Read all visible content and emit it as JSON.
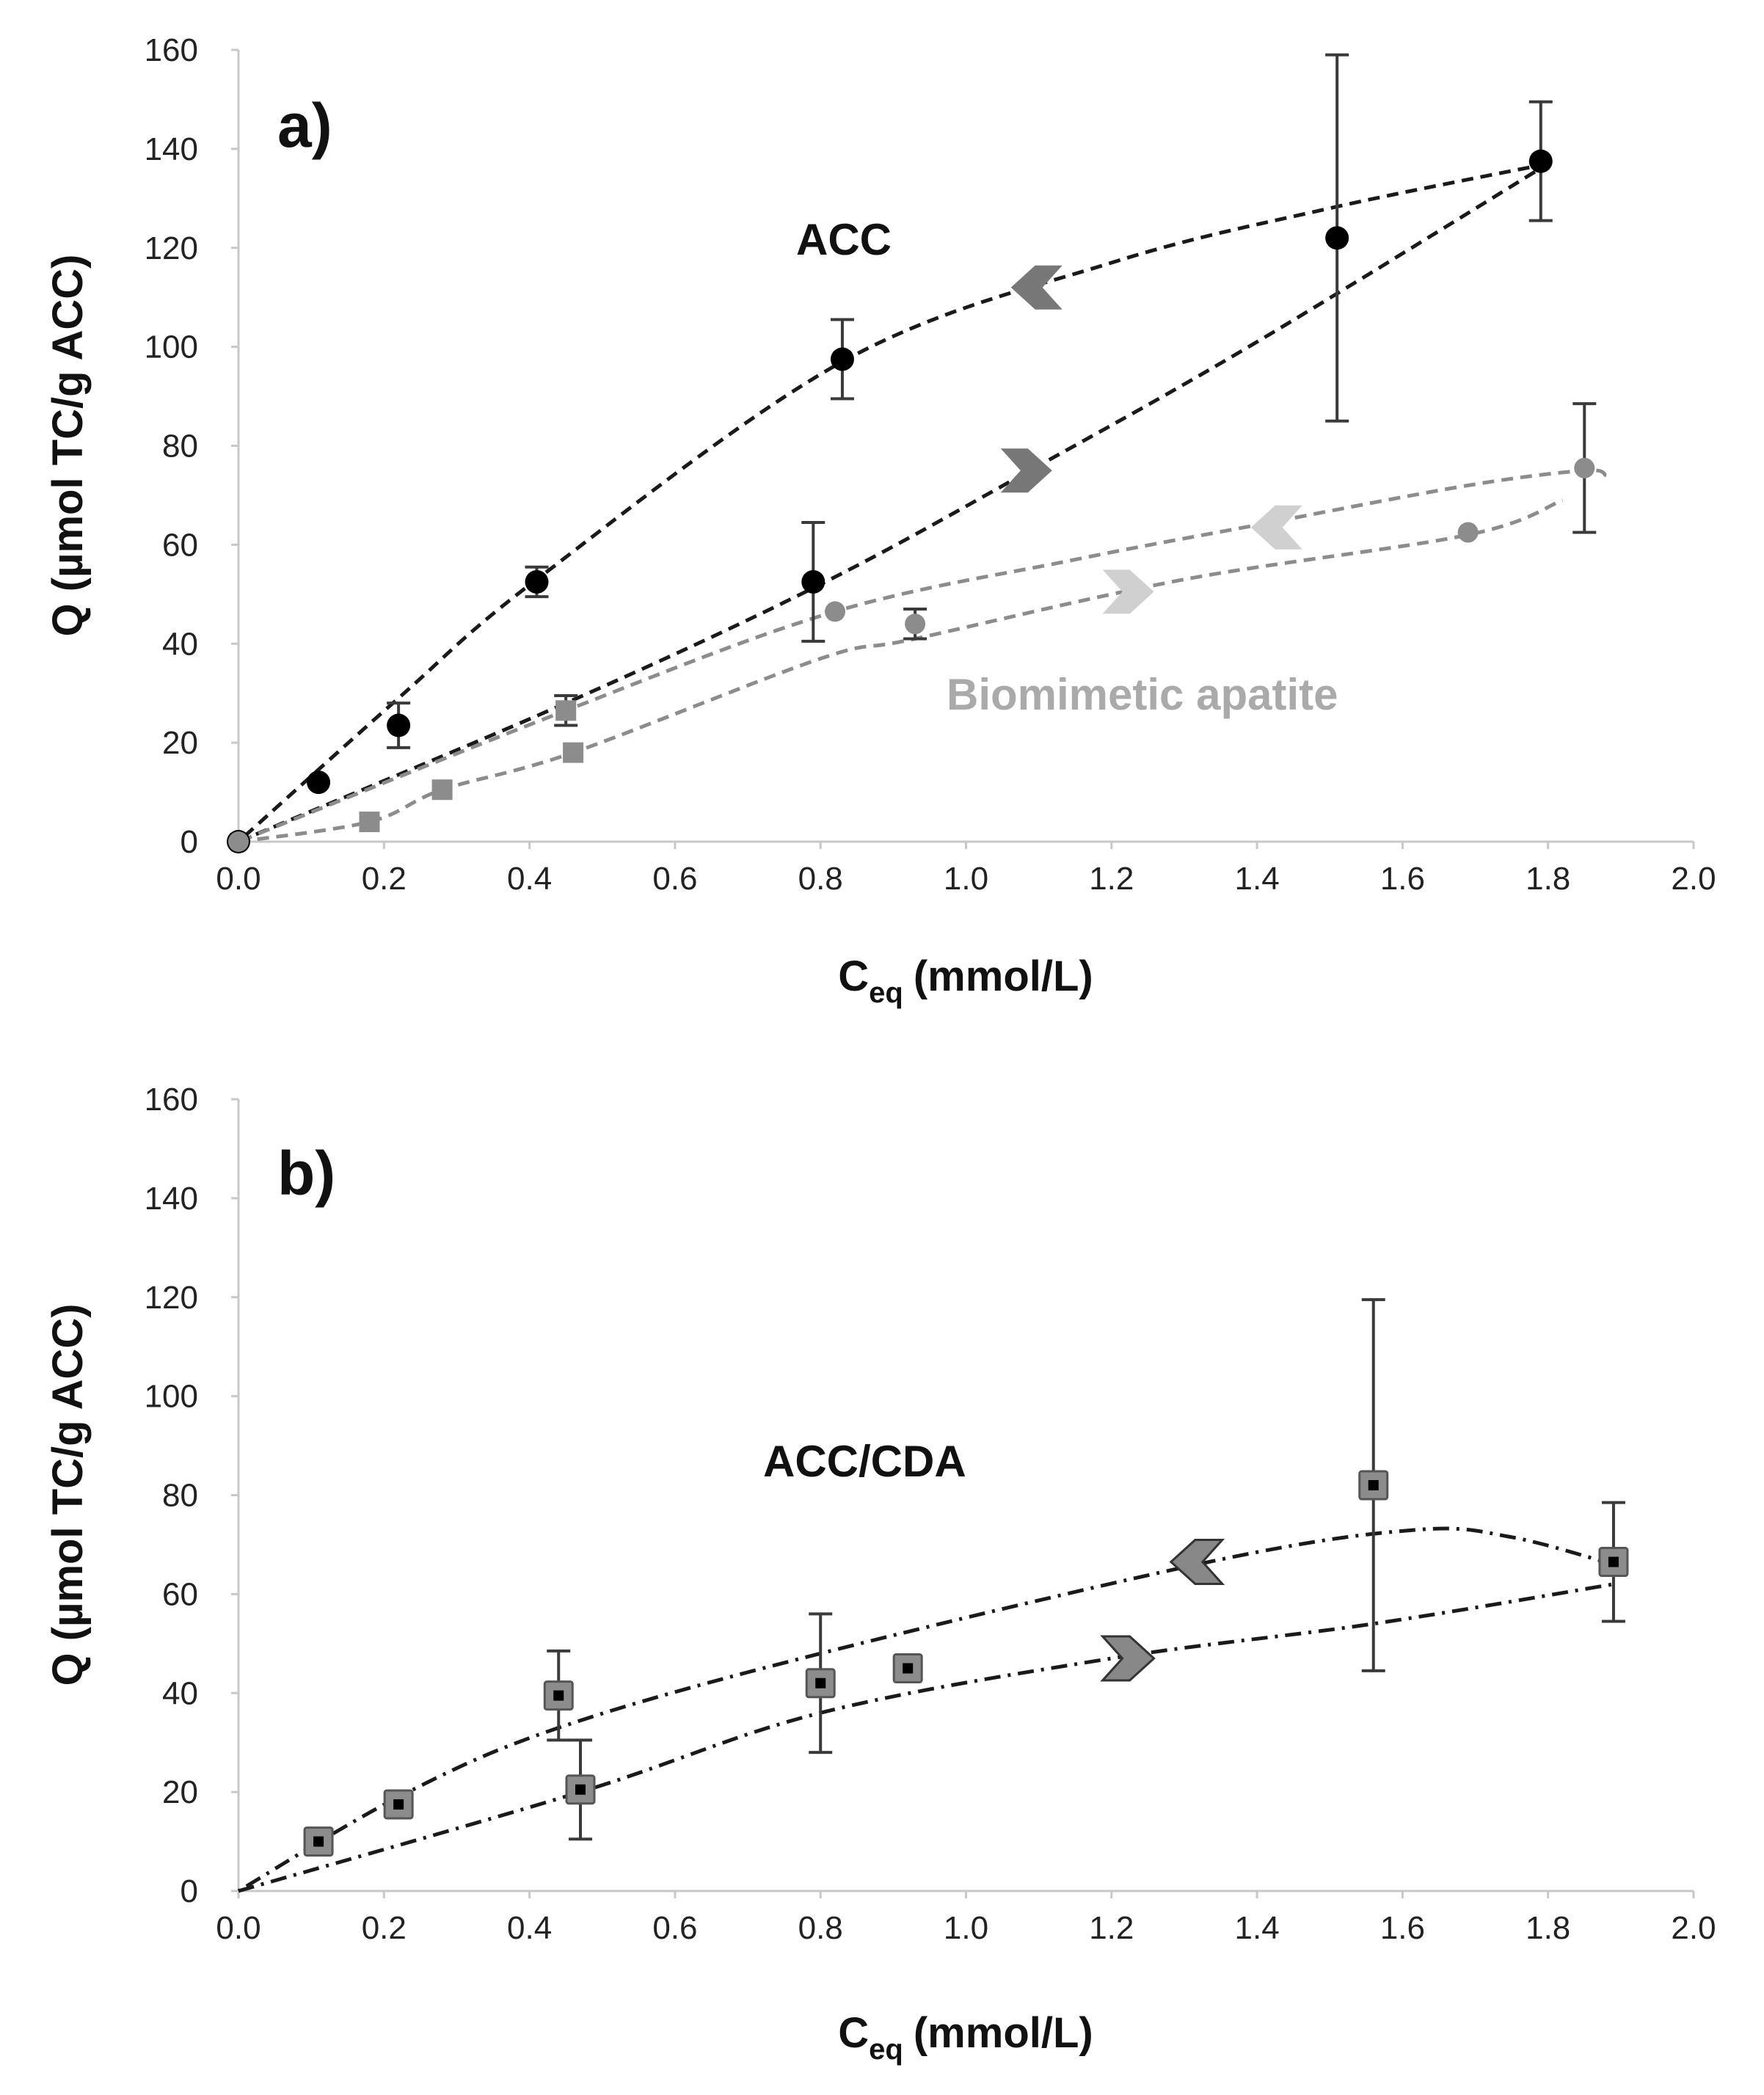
{
  "chart_data": [
    {
      "type": "scatter",
      "panel_label": "a)",
      "xlabel": "C",
      "xlabel_subscript": "eq",
      "xlabel_unit": "(mmol/L)",
      "ylabel": "Q (µmol TC/g ACC)",
      "xlim": [
        0,
        2.0
      ],
      "ylim": [
        0,
        160
      ],
      "xticks": [
        "0.0",
        "0.2",
        "0.4",
        "0.6",
        "0.8",
        "1.0",
        "1.2",
        "1.4",
        "1.6",
        "1.8",
        "2.0"
      ],
      "yticks": [
        "0",
        "20",
        "40",
        "60",
        "80",
        "100",
        "120",
        "140",
        "160"
      ],
      "series": [
        {
          "name": "ACC",
          "label": "ACC",
          "label_color": "#111111",
          "marker": "circle",
          "marker_color": "#000000",
          "line_style": "dashed",
          "line_color": "#1a1a1a",
          "points": [
            {
              "x": 0.0,
              "y": 0,
              "err": 0
            },
            {
              "x": 0.11,
              "y": 12,
              "err": 0
            },
            {
              "x": 0.22,
              "y": 23.5,
              "err": 4.5
            },
            {
              "x": 0.41,
              "y": 52.5,
              "err": 3
            },
            {
              "x": 0.83,
              "y": 97.5,
              "err": 8
            },
            {
              "x": 0.79,
              "y": 52.5,
              "err": 12
            },
            {
              "x": 1.51,
              "y": 122,
              "err": 37
            },
            {
              "x": 1.79,
              "y": 137.5,
              "err": 12
            }
          ],
          "curves": [
            {
              "direction": "adsorption",
              "x": [
                0.0,
                0.45,
                0.8,
                1.1,
                1.4,
                1.8
              ],
              "y": [
                0,
                28,
                52,
                76,
                101,
                137
              ]
            },
            {
              "direction": "desorption",
              "x": [
                1.8,
                1.5,
                1.2,
                0.83,
                0.41,
                0.22,
                0.0
              ],
              "y": [
                137,
                128,
                117,
                97,
                53,
                29,
                0
              ]
            }
          ],
          "arrows": [
            {
              "x": 1.1,
              "y": 112,
              "direction": "left",
              "color": "#777777"
            },
            {
              "x": 1.08,
              "y": 75,
              "direction": "right",
              "color": "#777777"
            }
          ]
        },
        {
          "name": "Biomimetic apatite",
          "label": "Biomimetic apatite",
          "label_color": "#aaaaaa",
          "marker": "mixed",
          "marker_color": "#8c8c8c",
          "line_style": "dashed",
          "line_color": "#8c8c8c",
          "points": [
            {
              "x": 0.0,
              "y": 0,
              "err": 0,
              "marker": "circle"
            },
            {
              "x": 0.18,
              "y": 4,
              "err": 0,
              "marker": "square"
            },
            {
              "x": 0.28,
              "y": 10.5,
              "err": 0,
              "marker": "square"
            },
            {
              "x": 0.46,
              "y": 18,
              "err": 0,
              "marker": "square"
            },
            {
              "x": 0.45,
              "y": 26.5,
              "err": 3,
              "marker": "square"
            },
            {
              "x": 0.82,
              "y": 46.5,
              "err": 0,
              "marker": "circle"
            },
            {
              "x": 0.93,
              "y": 44,
              "err": 3,
              "marker": "circle"
            },
            {
              "x": 1.69,
              "y": 62.5,
              "err": 0,
              "marker": "circle"
            },
            {
              "x": 1.85,
              "y": 75.5,
              "err": 13,
              "marker": "circle"
            }
          ],
          "curves": [
            {
              "direction": "adsorption",
              "x": [
                0.0,
                0.18,
                0.28,
                0.46,
                0.8,
                0.93,
                1.3,
                1.69,
                1.82
              ],
              "y": [
                0,
                4,
                10.5,
                18,
                37,
                41,
                53,
                62,
                69
              ]
            },
            {
              "direction": "desorption",
              "x": [
                1.88,
                1.85,
                1.69,
                1.4,
                1.15,
                0.82,
                0.45,
                0.0
              ],
              "y": [
                74,
                75,
                72,
                64,
                57,
                46.5,
                26.5,
                0
              ]
            }
          ],
          "arrows": [
            {
              "x": 1.43,
              "y": 63.5,
              "direction": "left",
              "color": "#d0d0d0"
            },
            {
              "x": 1.22,
              "y": 50.5,
              "direction": "right",
              "color": "#d0d0d0"
            }
          ]
        }
      ]
    },
    {
      "type": "scatter",
      "panel_label": "b)",
      "xlabel": "C",
      "xlabel_subscript": "eq",
      "xlabel_unit": "(mmol/L)",
      "ylabel": "Q (µmol TC/g ACC)",
      "xlim": [
        0,
        2.0
      ],
      "ylim": [
        0,
        160
      ],
      "xticks": [
        "0.0",
        "0.2",
        "0.4",
        "0.6",
        "0.8",
        "1.0",
        "1.2",
        "1.4",
        "1.6",
        "1.8",
        "2.0"
      ],
      "yticks": [
        "0",
        "20",
        "40",
        "60",
        "80",
        "100",
        "120",
        "140",
        "160"
      ],
      "series": [
        {
          "name": "ACC/CDA",
          "label": "ACC/CDA",
          "label_color": "#111111",
          "marker": "square",
          "marker_color": "#8c8c8c",
          "line_style": "dash-dot",
          "line_color": "#1a1a1a",
          "points": [
            {
              "x": 0.11,
              "y": 10,
              "err": 0
            },
            {
              "x": 0.22,
              "y": 17.5,
              "err": 0
            },
            {
              "x": 0.44,
              "y": 39.5,
              "err": 9
            },
            {
              "x": 0.47,
              "y": 20.5,
              "err": 10
            },
            {
              "x": 0.8,
              "y": 42,
              "err": 14
            },
            {
              "x": 0.92,
              "y": 45,
              "err": 0
            },
            {
              "x": 1.56,
              "y": 82,
              "err": 37.5
            },
            {
              "x": 1.89,
              "y": 66.5,
              "err": 12
            }
          ],
          "curves": [
            {
              "direction": "adsorption",
              "x": [
                0.0,
                0.47,
                0.8,
                1.2,
                1.56,
                1.89
              ],
              "y": [
                0,
                20,
                36,
                47,
                54,
                62
              ]
            },
            {
              "direction": "desorption",
              "x": [
                1.89,
                1.75,
                1.62,
                1.35,
                0.8,
                0.44,
                0.22,
                0.0
              ],
              "y": [
                66,
                71.5,
                73,
                67,
                48,
                33,
                19,
                0
              ]
            }
          ],
          "arrows": [
            {
              "x": 1.32,
              "y": 66.5,
              "direction": "left",
              "color": "#888888"
            },
            {
              "x": 1.22,
              "y": 47,
              "direction": "right",
              "color": "#888888"
            }
          ]
        }
      ]
    }
  ]
}
